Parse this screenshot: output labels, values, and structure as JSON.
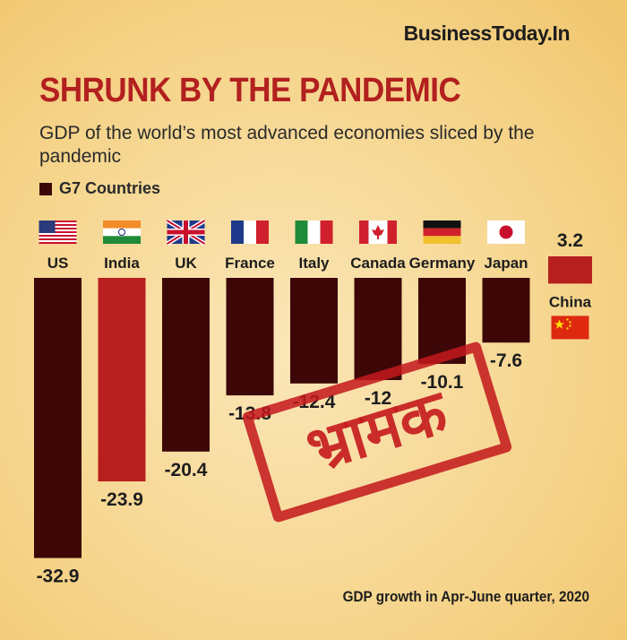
{
  "brand": "BusinessToday.In",
  "stamp_text": "भ्रामक",
  "chart_data": {
    "type": "bar",
    "title": "SHRUNK BY THE PANDEMIC",
    "subtitle": "GDP of the world’s most advanced economies sliced by the pandemic",
    "legend": [
      "G7 Countries"
    ],
    "footnote": "GDP growth in Apr-June quarter, 2020",
    "categories": [
      "US",
      "India",
      "UK",
      "France",
      "Italy",
      "Canada",
      "Germany",
      "Japan",
      "China"
    ],
    "values": [
      -32.9,
      -23.9,
      -20.4,
      -13.8,
      -12.4,
      -12,
      -10.1,
      -7.6,
      3.2
    ],
    "value_labels": [
      "-32.9",
      "-23.9",
      "-20.4",
      "-13.8",
      "-12.4",
      "-12",
      "-10.1",
      "-7.6",
      "3.2"
    ],
    "flags": [
      "us-flag-icon",
      "india-flag-icon",
      "uk-flag-icon",
      "france-flag-icon",
      "italy-flag-icon",
      "canada-flag-icon",
      "germany-flag-icon",
      "japan-flag-icon",
      "china-flag-icon"
    ],
    "colors": {
      "g7": "#3d0708",
      "highlight": "#b8201f"
    },
    "highlight_categories": [
      "India",
      "China"
    ]
  }
}
